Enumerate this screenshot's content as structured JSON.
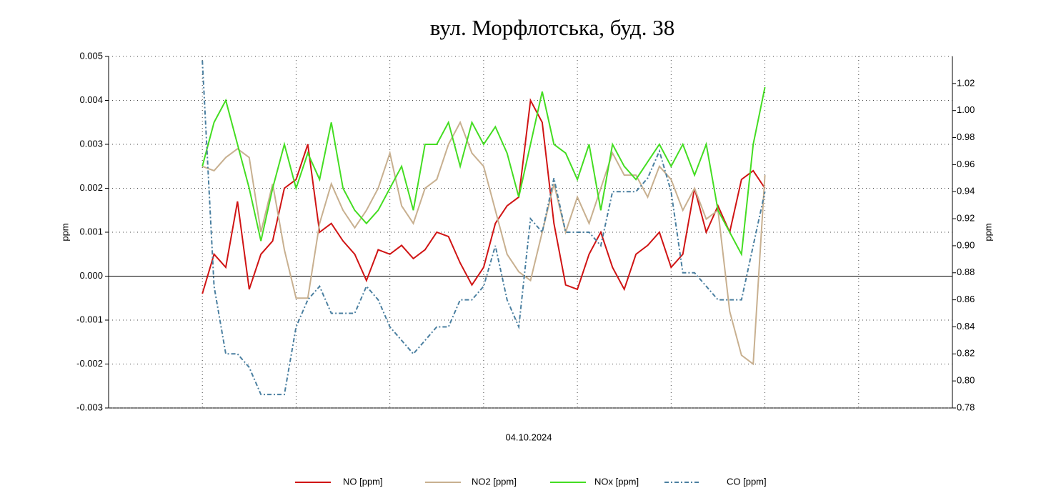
{
  "chart_data": {
    "type": "line",
    "title": "вул. Морфлотська, буд. 38",
    "xlabel": "04.10.2024",
    "ylabel": "ppm",
    "y2label": "ppm",
    "xlim": [
      -1,
      8
    ],
    "xgrid": [
      0,
      1,
      2,
      3,
      4,
      5,
      6,
      7
    ],
    "ylim": [
      -0.003,
      0.005
    ],
    "yticks": [
      -0.003,
      -0.002,
      -0.001,
      {
        "value": 0,
        "label": "0.000"
      },
      0.001,
      0.002,
      0.003,
      0.004,
      0.005
    ],
    "y2lim": [
      0.78,
      1.04
    ],
    "y2ticks": [
      0.78,
      {
        "value": 0.8,
        "label": "0.80"
      },
      0.82,
      0.84,
      0.86,
      0.88,
      {
        "value": 0.9,
        "label": "0.90"
      },
      0.92,
      0.94,
      0.96,
      0.98,
      {
        "value": 1.0,
        "label": "1.00"
      },
      1.02
    ],
    "grid": true,
    "x": [
      0,
      0.125,
      0.25,
      0.375,
      0.5,
      0.625,
      0.75,
      0.875,
      1,
      1.125,
      1.25,
      1.375,
      1.5,
      1.625,
      1.75,
      1.875,
      2,
      2.125,
      2.25,
      2.375,
      2.5,
      2.625,
      2.75,
      2.875,
      3,
      3.125,
      3.25,
      3.375,
      3.5,
      3.625,
      3.75,
      3.875,
      4,
      4.125,
      4.25,
      4.375,
      4.5,
      4.625,
      4.75,
      4.875,
      5,
      5.125,
      5.25,
      5.375,
      5.5,
      5.625,
      5.75,
      5.875,
      6
    ],
    "series": [
      {
        "name": "NO [ppm]",
        "color": "#d01414",
        "dash": "solid",
        "values": [
          -0.0004,
          0.0005,
          0.0002,
          0.0017,
          -0.0003,
          0.0005,
          0.0008,
          0.002,
          0.0022,
          0.003,
          0.001,
          0.0012,
          0.0008,
          0.0005,
          -0.0001,
          0.0006,
          0.0005,
          0.0007,
          0.0004,
          0.0006,
          0.001,
          0.0009,
          0.0003,
          -0.0002,
          0.0002,
          0.0012,
          0.0016,
          0.0018,
          0.004,
          0.0035,
          0.0012,
          -0.0002,
          -0.0003,
          0.0005,
          0.001,
          0.0002,
          -0.0003,
          0.0005,
          0.0007,
          0.001,
          0.0002,
          0.0005,
          0.002,
          0.001,
          0.0016,
          0.001,
          0.0022,
          0.0024,
          0.002
        ]
      },
      {
        "name": "NO2 [ppm]",
        "color": "#c8b090",
        "dash": "solid",
        "values": [
          0.0025,
          0.0024,
          0.0027,
          0.0029,
          0.0027,
          0.001,
          0.0021,
          0.0006,
          -0.0005,
          -0.0005,
          0.0012,
          0.0021,
          0.0015,
          0.0011,
          0.0015,
          0.002,
          0.0028,
          0.0016,
          0.0012,
          0.002,
          0.0022,
          0.003,
          0.0035,
          0.0028,
          0.0025,
          0.0015,
          0.0005,
          0.0001,
          -0.0001,
          0.001,
          0.0021,
          0.001,
          0.0018,
          0.0012,
          0.002,
          0.0028,
          0.0023,
          0.0023,
          0.0018,
          0.0025,
          0.0022,
          0.0015,
          0.002,
          0.0013,
          0.0015,
          -0.0008,
          -0.0018,
          -0.002,
          0.0023
        ]
      },
      {
        "name": "NOx [ppm]",
        "color": "#44dd22",
        "dash": "solid",
        "values": [
          0.0025,
          0.0035,
          0.004,
          0.003,
          0.002,
          0.0008,
          0.002,
          0.003,
          0.002,
          0.0028,
          0.0022,
          0.0035,
          0.002,
          0.0015,
          0.0012,
          0.0015,
          0.002,
          0.0025,
          0.0015,
          0.003,
          0.003,
          0.0035,
          0.0025,
          0.0035,
          0.003,
          0.0034,
          0.0028,
          0.0018,
          0.003,
          0.0042,
          0.003,
          0.0028,
          0.0022,
          0.003,
          0.0015,
          0.003,
          0.0025,
          0.0022,
          0.0026,
          0.003,
          0.0025,
          0.003,
          0.0023,
          0.003,
          0.0015,
          0.001,
          0.0005,
          0.003,
          0.0043
        ]
      },
      {
        "name": "CO [ppm]",
        "color": "#4a7fa0",
        "dash": "dashdot",
        "axis": "y2",
        "values": [
          1.037,
          0.87,
          0.82,
          0.82,
          0.81,
          0.79,
          0.79,
          0.79,
          0.84,
          0.86,
          0.87,
          0.85,
          0.85,
          0.85,
          0.87,
          0.86,
          0.84,
          0.83,
          0.82,
          0.83,
          0.84,
          0.84,
          0.86,
          0.86,
          0.87,
          0.9,
          0.86,
          0.84,
          0.92,
          0.91,
          0.95,
          0.91,
          0.91,
          0.91,
          0.9,
          0.94,
          0.94,
          0.94,
          0.95,
          0.97,
          0.94,
          0.88,
          0.88,
          0.87,
          0.86,
          0.86,
          0.86,
          0.9,
          0.94
        ]
      }
    ]
  }
}
